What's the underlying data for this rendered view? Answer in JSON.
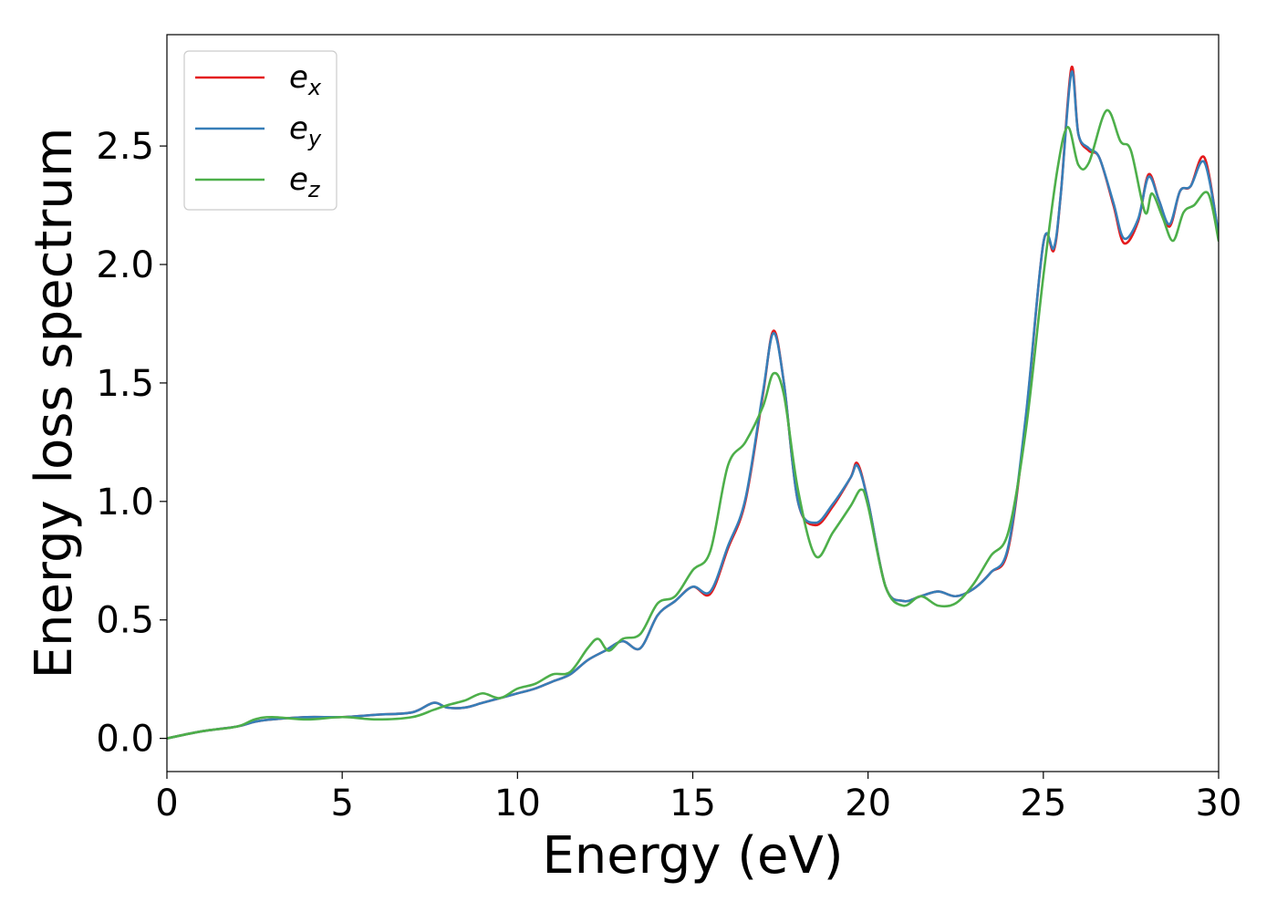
{
  "chart_data": {
    "type": "line",
    "title": "",
    "xlabel": "Energy (eV)",
    "ylabel": "Energy loss spectrum",
    "xlim": [
      0,
      30
    ],
    "ylim": [
      -0.14,
      2.97
    ],
    "xticks": [
      0,
      5,
      10,
      15,
      20,
      25,
      30
    ],
    "xtick_labels": [
      "0",
      "5",
      "10",
      "15",
      "20",
      "25",
      "30"
    ],
    "yticks": [
      0.0,
      0.5,
      1.0,
      1.5,
      2.0,
      2.5
    ],
    "ytick_labels": [
      "0.0",
      "0.5",
      "1.0",
      "1.5",
      "2.0",
      "2.5"
    ],
    "grid": false,
    "legend_position": "top-left",
    "series": [
      {
        "name": "e_x",
        "legend": {
          "base": "e",
          "sub": "x"
        },
        "color": "#e41a1c",
        "x": [
          0,
          1,
          2,
          2.5,
          3,
          4,
          5,
          6,
          7,
          7.6,
          8,
          8.5,
          9,
          9.5,
          10,
          10.5,
          11,
          11.5,
          12,
          12.5,
          13,
          13.5,
          14,
          14.5,
          15,
          15.5,
          16,
          16.5,
          17,
          17.3,
          17.6,
          18,
          18.5,
          19,
          19.5,
          19.7,
          20,
          20.5,
          21,
          21.5,
          22,
          22.5,
          23,
          23.5,
          24,
          24.5,
          25,
          25.3,
          25.5,
          25.8,
          26,
          26.3,
          26.6,
          27,
          27.3,
          27.7,
          28,
          28.3,
          28.6,
          28.9,
          29.2,
          29.6,
          30
        ],
        "y": [
          0,
          0.03,
          0.05,
          0.07,
          0.08,
          0.09,
          0.09,
          0.1,
          0.11,
          0.15,
          0.13,
          0.13,
          0.15,
          0.17,
          0.19,
          0.21,
          0.24,
          0.27,
          0.33,
          0.37,
          0.41,
          0.38,
          0.52,
          0.58,
          0.64,
          0.61,
          0.8,
          1.0,
          1.45,
          1.72,
          1.5,
          1.0,
          0.9,
          0.98,
          1.1,
          1.16,
          1.0,
          0.64,
          0.58,
          0.6,
          0.62,
          0.6,
          0.63,
          0.7,
          0.8,
          1.35,
          2.09,
          2.06,
          2.3,
          2.83,
          2.55,
          2.48,
          2.45,
          2.25,
          2.09,
          2.18,
          2.38,
          2.27,
          2.16,
          2.31,
          2.33,
          2.45,
          2.12
        ]
      },
      {
        "name": "e_y",
        "legend": {
          "base": "e",
          "sub": "y"
        },
        "color": "#377eb8",
        "x": [
          0,
          1,
          2,
          2.5,
          3,
          4,
          5,
          6,
          7,
          7.6,
          8,
          8.5,
          9,
          9.5,
          10,
          10.5,
          11,
          11.5,
          12,
          12.5,
          13,
          13.5,
          14,
          14.5,
          15,
          15.5,
          16,
          16.5,
          17,
          17.3,
          17.6,
          18,
          18.5,
          19,
          19.5,
          19.7,
          20,
          20.5,
          21,
          21.5,
          22,
          22.5,
          23,
          23.5,
          24,
          24.5,
          25,
          25.3,
          25.5,
          25.8,
          26,
          26.3,
          26.6,
          27,
          27.3,
          27.7,
          28,
          28.3,
          28.6,
          28.9,
          29.2,
          29.6,
          30
        ],
        "y": [
          0,
          0.03,
          0.05,
          0.07,
          0.08,
          0.09,
          0.09,
          0.1,
          0.11,
          0.15,
          0.13,
          0.13,
          0.15,
          0.17,
          0.19,
          0.21,
          0.24,
          0.27,
          0.33,
          0.37,
          0.41,
          0.38,
          0.52,
          0.58,
          0.64,
          0.62,
          0.81,
          1.01,
          1.46,
          1.71,
          1.5,
          1.0,
          0.91,
          0.99,
          1.1,
          1.15,
          1.0,
          0.64,
          0.58,
          0.6,
          0.62,
          0.6,
          0.63,
          0.7,
          0.81,
          1.36,
          2.09,
          2.07,
          2.3,
          2.81,
          2.55,
          2.49,
          2.45,
          2.26,
          2.11,
          2.19,
          2.37,
          2.27,
          2.17,
          2.31,
          2.33,
          2.43,
          2.13
        ]
      },
      {
        "name": "e_z",
        "legend": {
          "base": "e",
          "sub": "z"
        },
        "color": "#4daf4a",
        "x": [
          0,
          1,
          2,
          2.5,
          3,
          4,
          5,
          6,
          7,
          7.6,
          8,
          8.5,
          9,
          9.5,
          10,
          10.5,
          11,
          11.5,
          12,
          12.3,
          12.6,
          13,
          13.5,
          14,
          14.5,
          15,
          15.5,
          16,
          16.5,
          17,
          17.3,
          17.6,
          18,
          18.5,
          19,
          19.5,
          19.8,
          20,
          20.5,
          21,
          21.5,
          22,
          22.5,
          23,
          23.5,
          24,
          24.5,
          25,
          25.4,
          25.7,
          26,
          26.3,
          26.8,
          27.2,
          27.5,
          27.9,
          28.1,
          28.4,
          28.7,
          29,
          29.3,
          29.7,
          30
        ],
        "y": [
          0,
          0.03,
          0.05,
          0.08,
          0.09,
          0.08,
          0.09,
          0.08,
          0.09,
          0.12,
          0.14,
          0.16,
          0.19,
          0.17,
          0.21,
          0.23,
          0.27,
          0.28,
          0.38,
          0.42,
          0.37,
          0.42,
          0.44,
          0.57,
          0.6,
          0.71,
          0.79,
          1.15,
          1.25,
          1.4,
          1.54,
          1.45,
          1.05,
          0.77,
          0.87,
          0.98,
          1.05,
          0.98,
          0.64,
          0.56,
          0.6,
          0.56,
          0.57,
          0.65,
          0.77,
          0.87,
          1.3,
          1.95,
          2.4,
          2.58,
          2.42,
          2.43,
          2.65,
          2.52,
          2.48,
          2.22,
          2.3,
          2.2,
          2.1,
          2.22,
          2.25,
          2.3,
          2.1
        ]
      }
    ]
  }
}
